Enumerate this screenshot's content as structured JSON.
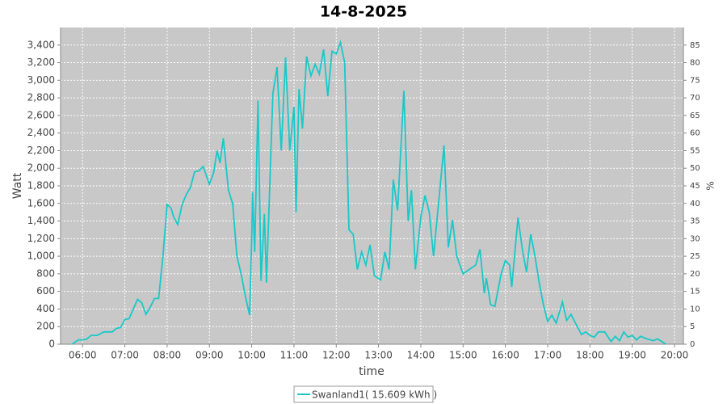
{
  "chart_data": {
    "type": "line",
    "title": "14-8-2025",
    "x_label": "time",
    "y_label": "Watt",
    "y2_label": "%",
    "x": [
      5.75,
      5.9,
      6.0,
      6.1,
      6.2,
      6.35,
      6.5,
      6.7,
      6.8,
      6.9,
      7.0,
      7.1,
      7.2,
      7.3,
      7.4,
      7.5,
      7.6,
      7.7,
      7.8,
      7.9,
      8.0,
      8.1,
      8.15,
      8.25,
      8.35,
      8.45,
      8.55,
      8.65,
      8.75,
      8.85,
      9.0,
      9.1,
      9.18,
      9.25,
      9.33,
      9.45,
      9.55,
      9.65,
      9.75,
      9.85,
      9.95,
      10.0,
      10.02,
      10.07,
      10.15,
      10.22,
      10.3,
      10.35,
      10.5,
      10.6,
      10.7,
      10.8,
      10.9,
      11.0,
      11.05,
      11.12,
      11.2,
      11.3,
      11.4,
      11.5,
      11.6,
      11.7,
      11.8,
      11.9,
      12.0,
      12.1,
      12.2,
      12.3,
      12.4,
      12.5,
      12.6,
      12.7,
      12.8,
      12.9,
      13.05,
      13.15,
      13.25,
      13.35,
      13.45,
      13.6,
      13.7,
      13.78,
      13.87,
      14.0,
      14.1,
      14.2,
      14.3,
      14.42,
      14.55,
      14.65,
      14.75,
      14.85,
      15.0,
      15.15,
      15.3,
      15.4,
      15.5,
      15.55,
      15.65,
      15.75,
      15.9,
      16.0,
      16.1,
      16.15,
      16.3,
      16.4,
      16.5,
      16.6,
      16.7,
      16.8,
      16.9,
      17.0,
      17.1,
      17.2,
      17.35,
      17.45,
      17.55,
      17.7,
      17.8,
      17.9,
      18.0,
      18.1,
      18.2,
      18.35,
      18.5,
      18.6,
      18.7,
      18.8,
      18.9,
      19.0,
      19.1,
      19.2,
      19.35,
      19.5,
      19.6,
      19.7,
      19.8
    ],
    "series": [
      {
        "name": "Swanland1( 15.609 kWh )",
        "color": "#19c8c8",
        "values": [
          0,
          50,
          50,
          60,
          100,
          100,
          140,
          140,
          180,
          190,
          280,
          290,
          400,
          510,
          470,
          340,
          420,
          520,
          520,
          1000,
          1590,
          1540,
          1450,
          1360,
          1580,
          1700,
          1780,
          1960,
          1970,
          2020,
          1820,
          1950,
          2200,
          2060,
          2340,
          1750,
          1600,
          1000,
          800,
          550,
          330,
          1200,
          1730,
          1050,
          2770,
          720,
          1480,
          700,
          2850,
          3150,
          2200,
          3260,
          2200,
          2700,
          1500,
          2900,
          2450,
          3270,
          3050,
          3180,
          3070,
          3350,
          2820,
          3330,
          3300,
          3430,
          3200,
          1300,
          1250,
          850,
          1050,
          900,
          1130,
          780,
          730,
          1050,
          850,
          1870,
          1520,
          2880,
          1400,
          1750,
          850,
          1450,
          1690,
          1500,
          1000,
          1600,
          2260,
          1100,
          1410,
          1000,
          800,
          850,
          900,
          1080,
          580,
          750,
          450,
          430,
          800,
          950,
          900,
          650,
          1440,
          1080,
          820,
          1250,
          1000,
          700,
          450,
          260,
          330,
          240,
          480,
          270,
          340,
          200,
          110,
          140,
          100,
          80,
          140,
          140,
          30,
          90,
          40,
          140,
          80,
          100,
          50,
          90,
          60,
          40,
          60,
          30,
          0
        ]
      }
    ],
    "xlim": [
      5.48,
      20.21
    ],
    "xticks": [
      {
        "value": 6,
        "label": "06:00"
      },
      {
        "value": 7,
        "label": "07:00"
      },
      {
        "value": 8,
        "label": "08:00"
      },
      {
        "value": 9,
        "label": "09:00"
      },
      {
        "value": 10,
        "label": "10:00"
      },
      {
        "value": 11,
        "label": "11:00"
      },
      {
        "value": 12,
        "label": "12:00"
      },
      {
        "value": 13,
        "label": "13:00"
      },
      {
        "value": 14,
        "label": "14:00"
      },
      {
        "value": 15,
        "label": "15:00"
      },
      {
        "value": 16,
        "label": "16:00"
      },
      {
        "value": 17,
        "label": "17:00"
      },
      {
        "value": 18,
        "label": "18:00"
      },
      {
        "value": 19,
        "label": "19:00"
      },
      {
        "value": 20,
        "label": "20:00"
      }
    ],
    "ylim": [
      0,
      3600
    ],
    "yticks": [
      0,
      200,
      400,
      600,
      800,
      {
        "value": 1000,
        "label": "1,000"
      },
      {
        "value": 1200,
        "label": "1,200"
      },
      {
        "value": 1400,
        "label": "1,400"
      },
      {
        "value": 1600,
        "label": "1,600"
      },
      {
        "value": 1800,
        "label": "1,800"
      },
      {
        "value": 2000,
        "label": "2,000"
      },
      {
        "value": 2200,
        "label": "2,200"
      },
      {
        "value": 2400,
        "label": "2,400"
      },
      {
        "value": 2600,
        "label": "2,600"
      },
      {
        "value": 2800,
        "label": "2,800"
      },
      {
        "value": 3000,
        "label": "3,000"
      },
      {
        "value": 3200,
        "label": "3,200"
      },
      {
        "value": 3400,
        "label": "3,400"
      }
    ],
    "y2lim": [
      0,
      90
    ],
    "y2ticks": [
      0,
      5,
      10,
      15,
      20,
      25,
      30,
      35,
      40,
      45,
      50,
      55,
      60,
      65,
      70,
      75,
      80,
      85
    ],
    "grid": true
  }
}
